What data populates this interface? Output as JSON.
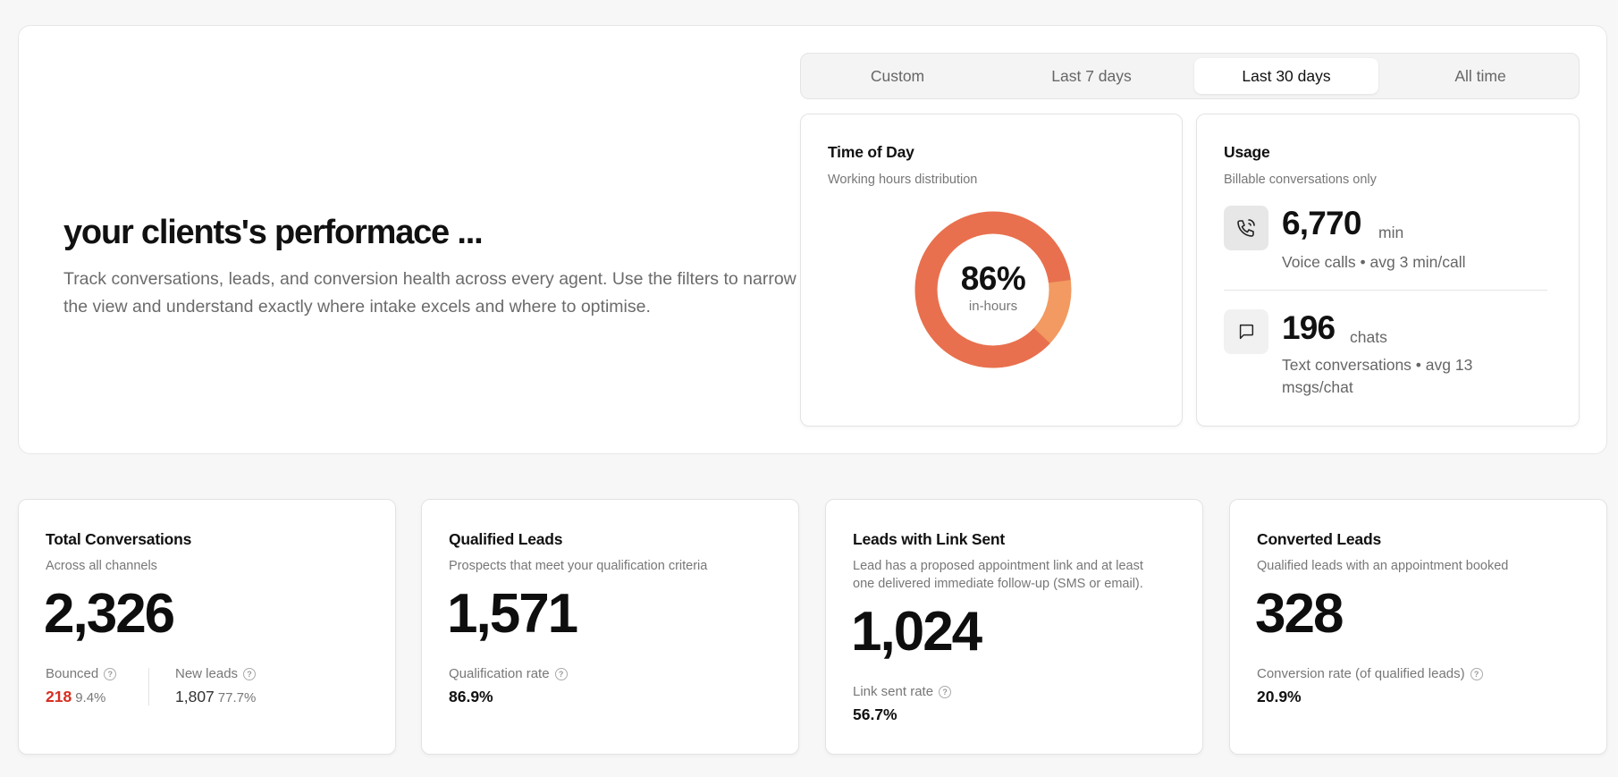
{
  "hero": {
    "title": "your clients's performace ...",
    "description": "Track conversations, leads, and conversion health across every agent. Use the filters to narrow the view and understand exactly where intake excels and where to optimise."
  },
  "range_tabs": {
    "items": [
      "Custom",
      "Last 7 days",
      "Last 30 days",
      "All time"
    ],
    "selected": "Last 30 days"
  },
  "time_of_day": {
    "title": "Time of Day",
    "subtitle": "Working hours distribution",
    "percent_label": "86%",
    "in_hours_fraction": 0.86,
    "center_label": "in-hours",
    "colors": {
      "in_hours": "#e8704f",
      "off_hours": "#f29a61"
    }
  },
  "usage": {
    "title": "Usage",
    "subtitle": "Billable conversations only",
    "voice": {
      "value": "6,770",
      "unit": "min",
      "description": "Voice calls • avg 3 min/call",
      "icon": "phone-icon"
    },
    "chat": {
      "value": "196",
      "unit": "chats",
      "description_line1": "Text conversations • avg 13",
      "description_line2": "msgs/chat",
      "icon": "chat-bubble-icon"
    }
  },
  "metrics": {
    "total_conversations": {
      "title": "Total Conversations",
      "subtitle": "Across all channels",
      "value": "2,326",
      "bounced": {
        "label": "Bounced",
        "count": "218",
        "pct": "9.4%"
      },
      "new_leads": {
        "label": "New leads",
        "count": "1,807",
        "pct": "77.7%"
      }
    },
    "qualified_leads": {
      "title": "Qualified Leads",
      "subtitle": "Prospects that meet your qualification criteria",
      "value": "1,571",
      "stat_label": "Qualification rate",
      "stat_value": "86.9%"
    },
    "link_sent": {
      "title": "Leads with Link Sent",
      "subtitle_line1": "Lead has a proposed appointment link and at least",
      "subtitle_line2": "one delivered immediate follow-up (SMS or email).",
      "value": "1,024",
      "stat_label": "Link sent rate",
      "stat_value": "56.7%"
    },
    "converted_leads": {
      "title": "Converted Leads",
      "subtitle": "Qualified leads with an appointment booked",
      "value": "328",
      "stat_label": "Conversion rate (of qualified leads)",
      "stat_value": "20.9%"
    }
  },
  "help_icon_glyph": "?"
}
